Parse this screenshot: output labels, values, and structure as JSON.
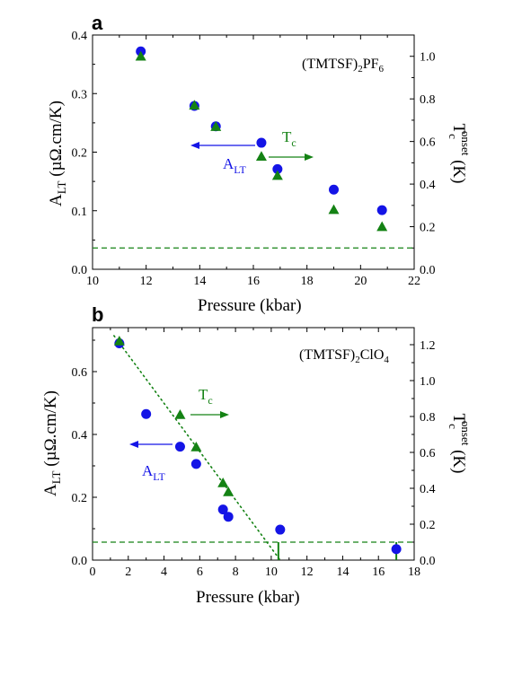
{
  "chart_data": [
    {
      "panel": "a",
      "type": "scatter",
      "compound": {
        "base": "(TMTSF)",
        "sub": "2",
        "rest": "PF",
        "sub2": "6"
      },
      "xlabel": "Pressure (kbar)",
      "ylabel": {
        "main": "A",
        "sub": "LT",
        "rest": " (µΩ.cm/K)"
      },
      "y2label": {
        "main": "T",
        "sub": "c",
        "sup": "onset",
        "rest": " (K)"
      },
      "xlim": [
        10,
        22
      ],
      "ylim": [
        0,
        0.4
      ],
      "y2lim": [
        0,
        1.1
      ],
      "xticks": [
        10,
        12,
        14,
        16,
        18,
        20,
        22
      ],
      "yticks": [
        0.0,
        0.1,
        0.2,
        0.3,
        0.4
      ],
      "y2ticks": [
        0.0,
        0.2,
        0.4,
        0.6,
        0.8,
        1.0
      ],
      "xtick_labels": [
        "10",
        "12",
        "14",
        "16",
        "18",
        "20",
        "22"
      ],
      "ytick_labels": [
        "0.0",
        "0.1",
        "0.2",
        "0.3",
        "0.4"
      ],
      "y2tick_labels": [
        "0.0",
        "0.2",
        "0.4",
        "0.6",
        "0.8",
        "1.0"
      ],
      "colors": {
        "A_LT": "#1414e6",
        "Tc": "#148214"
      },
      "series": [
        {
          "key": "A_LT",
          "axis": "left",
          "marker": "circle",
          "x": [
            11.8,
            13.8,
            14.6,
            16.3,
            16.9,
            19.0,
            20.8
          ],
          "y": [
            0.372,
            0.279,
            0.244,
            0.216,
            0.171,
            0.136,
            0.101
          ]
        },
        {
          "key": "Tc",
          "axis": "right",
          "marker": "triangle",
          "x": [
            11.8,
            13.8,
            14.6,
            16.3,
            16.9,
            19.0,
            20.8
          ],
          "y": [
            1.0,
            0.77,
            0.67,
            0.53,
            0.44,
            0.28,
            0.2
          ]
        }
      ],
      "dashed_hline_right": 0.1,
      "labels": {
        "A": {
          "main": "A",
          "sub": "LT"
        },
        "T": {
          "main": "T",
          "sub": "c"
        }
      }
    },
    {
      "panel": "b",
      "type": "scatter",
      "compound": {
        "base": "(TMTSF)",
        "sub": "2",
        "rest": "ClO",
        "sub2": "4"
      },
      "xlabel": "Pressure (kbar)",
      "ylabel": {
        "main": "A",
        "sub": "LT",
        "rest": " (µΩ.cm/K)"
      },
      "y2label": {
        "main": "T",
        "sub": "c",
        "sup": "onset",
        "rest": " (K)"
      },
      "xlim": [
        0,
        18
      ],
      "ylim": [
        0,
        0.74
      ],
      "y2lim": [
        0,
        1.295
      ],
      "xticks": [
        0,
        2,
        4,
        6,
        8,
        10,
        12,
        14,
        16,
        18
      ],
      "yticks": [
        0.0,
        0.2,
        0.4,
        0.6
      ],
      "y2ticks": [
        0.0,
        0.2,
        0.4,
        0.6,
        0.8,
        1.0,
        1.2
      ],
      "xtick_labels": [
        "0",
        "2",
        "4",
        "6",
        "8",
        "10",
        "12",
        "14",
        "16",
        "18"
      ],
      "ytick_labels": [
        "0.0",
        "0.2",
        "0.4",
        "0.6"
      ],
      "y2tick_labels": [
        "0.0",
        "0.2",
        "0.4",
        "0.6",
        "0.8",
        "1.0",
        "1.2"
      ],
      "colors": {
        "A_LT": "#1414e6",
        "Tc": "#148214"
      },
      "series": [
        {
          "key": "A_LT",
          "axis": "left",
          "marker": "circle",
          "x": [
            1.5,
            3.0,
            4.9,
            5.8,
            7.3,
            7.6,
            10.5,
            17.0
          ],
          "y": [
            0.69,
            0.465,
            0.361,
            0.306,
            0.161,
            0.138,
            0.097,
            0.035
          ]
        },
        {
          "key": "Tc",
          "axis": "right",
          "marker": "triangle",
          "x": [
            1.5,
            4.9,
            5.8,
            7.3,
            7.6
          ],
          "y": [
            1.22,
            0.81,
            0.63,
            0.43,
            0.38
          ]
        }
      ],
      "dotted_fit": {
        "axis": "right",
        "x": [
          1.2,
          10.5
        ],
        "y": [
          1.25,
          0.0
        ]
      },
      "dashed_hline_right": 0.1,
      "zero_markers_x": [
        10.4,
        17.0
      ],
      "labels": {
        "A": {
          "main": "A",
          "sub": "LT"
        },
        "T": {
          "main": "T",
          "sub": "c"
        }
      }
    }
  ]
}
